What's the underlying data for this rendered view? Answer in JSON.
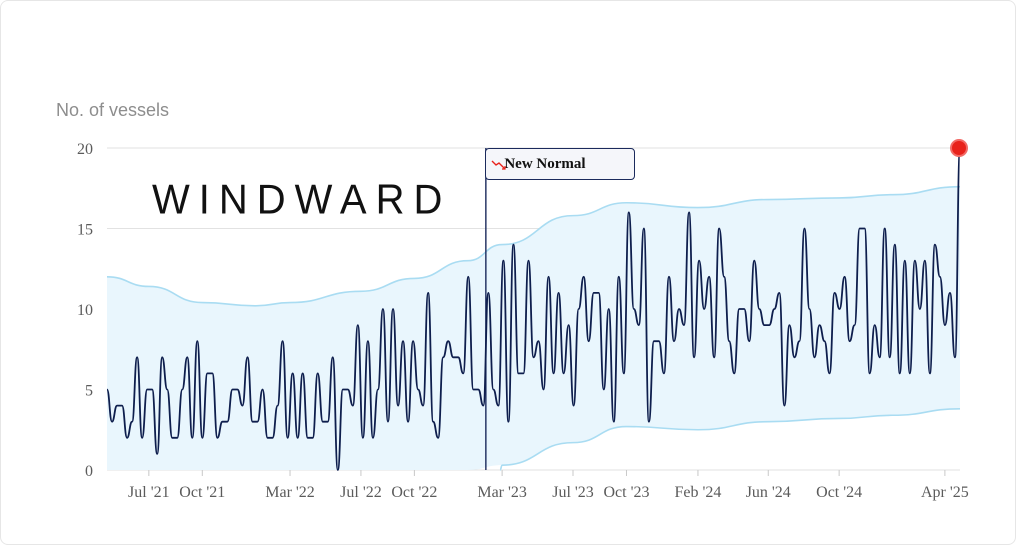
{
  "watermark": "WINDWARD",
  "colors": {
    "line": "#0e1e4d",
    "band_fill": "#e9f6fd",
    "band_edge": "#a9dcf2",
    "grid": "#e2e2e2",
    "marker": "#e8221b",
    "annotation_line": "#1b2a5c"
  },
  "chart_data": {
    "type": "line",
    "title": "",
    "ylabel": "No. of vessels",
    "xlabel": "",
    "ylim": [
      0,
      20
    ],
    "yticks": [
      0,
      5,
      10,
      15,
      20
    ],
    "xlim": [
      "2021-04-20",
      "2025-04-27"
    ],
    "xticks": [
      {
        "date": "2021-07-01",
        "label": "Jul '21"
      },
      {
        "date": "2021-10-01",
        "label": "Oct '21"
      },
      {
        "date": "2022-03-01",
        "label": "Mar '22"
      },
      {
        "date": "2022-07-01",
        "label": "Jul '22"
      },
      {
        "date": "2022-10-01",
        "label": "Oct '22"
      },
      {
        "date": "2023-03-01",
        "label": "Mar '23"
      },
      {
        "date": "2023-07-01",
        "label": "Jul '23"
      },
      {
        "date": "2023-10-01",
        "label": "Oct '23"
      },
      {
        "date": "2024-02-01",
        "label": "Feb '24"
      },
      {
        "date": "2024-06-01",
        "label": "Jun '24"
      },
      {
        "date": "2024-10-01",
        "label": "Oct '24"
      },
      {
        "date": "2025-04-01",
        "label": "Apr '25"
      }
    ],
    "annotation": {
      "date": "2023-02-01",
      "label": "New Normal"
    },
    "band": {
      "x": [
        "2021-04-20",
        "2021-07-01",
        "2021-10-01",
        "2022-01-01",
        "2022-03-01",
        "2022-07-01",
        "2022-10-01",
        "2023-01-01",
        "2023-03-01",
        "2023-07-01",
        "2023-10-01",
        "2024-02-01",
        "2024-06-01",
        "2024-10-01",
        "2025-01-01",
        "2025-04-27"
      ],
      "upper": [
        12.0,
        11.4,
        10.4,
        10.2,
        10.4,
        11.1,
        11.9,
        13.0,
        14.0,
        15.8,
        16.6,
        16.3,
        16.8,
        16.9,
        17.1,
        17.6
      ],
      "lower": [
        null,
        null,
        null,
        null,
        null,
        null,
        null,
        null,
        0.3,
        1.7,
        2.7,
        2.5,
        3.0,
        3.2,
        3.4,
        3.8
      ]
    },
    "series": [
      {
        "values": [
          5,
          3,
          4,
          4,
          2,
          3,
          7,
          2,
          5,
          5,
          1,
          7,
          5,
          2,
          2,
          5,
          7,
          2,
          8,
          2,
          6,
          6,
          2,
          3,
          3,
          5,
          5,
          4,
          7,
          3,
          3,
          5,
          2,
          2,
          4,
          8,
          2,
          6,
          2,
          6,
          2,
          2,
          6,
          3,
          3,
          7,
          0,
          5,
          5,
          4,
          9,
          2,
          8,
          2,
          5,
          10,
          3,
          10,
          4,
          8,
          3,
          8,
          5,
          4,
          11,
          3,
          2,
          7,
          8,
          7,
          7,
          6,
          12,
          5,
          5,
          4,
          11,
          5,
          4,
          13,
          3,
          14,
          6,
          6,
          13,
          7,
          8,
          5,
          12,
          6,
          11,
          6,
          9,
          4,
          10,
          12,
          8,
          11,
          11,
          5,
          10,
          3,
          12,
          6,
          16,
          10,
          9,
          15,
          3,
          8,
          8,
          6,
          12,
          8,
          10,
          9,
          16,
          7,
          13,
          10,
          12,
          7,
          15,
          12,
          8,
          6,
          10,
          10,
          8,
          13,
          10,
          9,
          9,
          10,
          11,
          4,
          9,
          7,
          8,
          15,
          10,
          7,
          9,
          8,
          6,
          11,
          10,
          12,
          8,
          9,
          15,
          15,
          6,
          9,
          7,
          15,
          7,
          14,
          6,
          13,
          6,
          13,
          10,
          13,
          6,
          14,
          12,
          9,
          11,
          7,
          20
        ]
      }
    ],
    "last_point": {
      "date": "2025-04-27",
      "value": 20
    }
  }
}
